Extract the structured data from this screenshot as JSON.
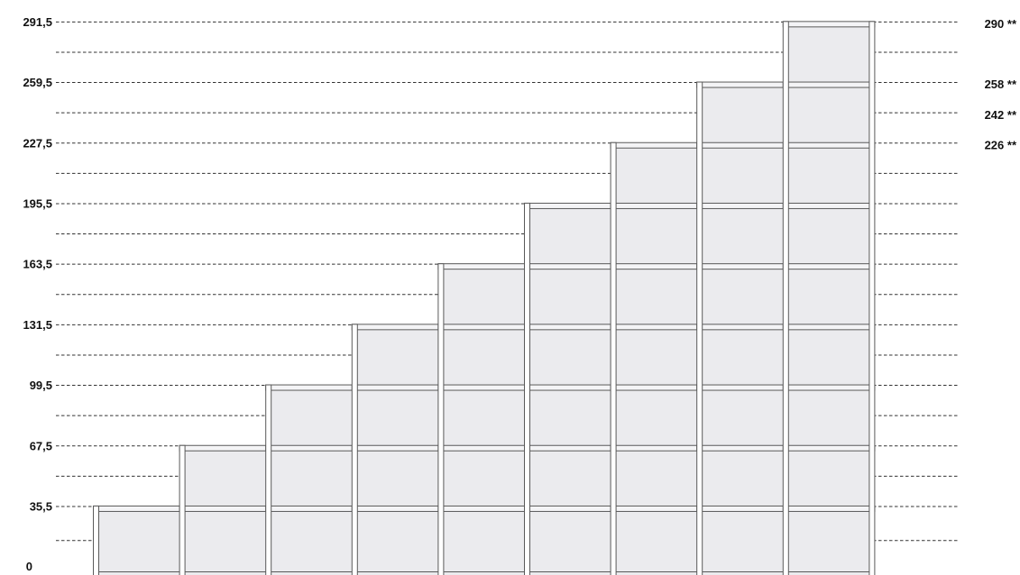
{
  "diagram": {
    "levels": [
      {
        "value": 291.5,
        "label": "291,5"
      },
      {
        "value": 259.5,
        "label": "259,5"
      },
      {
        "value": 227.5,
        "label": "227,5"
      },
      {
        "value": 195.5,
        "label": "195,5"
      },
      {
        "value": 163.5,
        "label": "163,5"
      },
      {
        "value": 131.5,
        "label": "131,5"
      },
      {
        "value": 99.5,
        "label": "99,5"
      },
      {
        "value": 67.5,
        "label": "67,5"
      },
      {
        "value": 35.5,
        "label": "35,5"
      },
      {
        "value": 0,
        "label": "0"
      }
    ],
    "right_labels": [
      {
        "value": 290,
        "label": "290 **"
      },
      {
        "value": 258,
        "label": "258 **"
      },
      {
        "value": 242,
        "label": "242 **"
      },
      {
        "value": 226,
        "label": "226 **"
      }
    ],
    "column_heights": [
      35.5,
      67.5,
      99.5,
      131.5,
      163.5,
      195.5,
      227.5,
      259.5,
      291.5
    ],
    "colors": {
      "line": "#333333",
      "frame": "#5a5a5a",
      "panel": "#ebebee",
      "text": "#111111"
    }
  }
}
